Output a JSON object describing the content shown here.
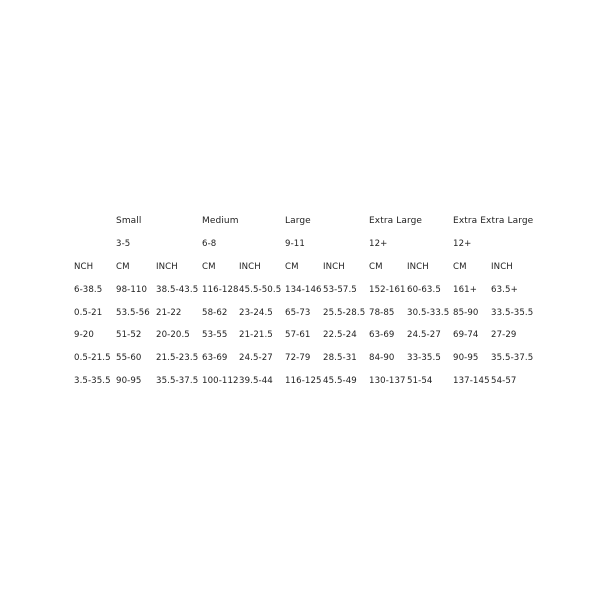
{
  "size_groups": [
    {
      "name": "Small",
      "age": "3-5"
    },
    {
      "name": "Medium",
      "age": "6-8"
    },
    {
      "name": "Large",
      "age": "9-11"
    },
    {
      "name": "Extra Large",
      "age": "12+"
    },
    {
      "name": "Extra Extra Large",
      "age": "12+"
    }
  ],
  "header_row": [
    "NCH",
    "CM",
    "INCH",
    "CM",
    "INCH",
    "CM",
    "INCH",
    "CM",
    "INCH",
    "CM",
    "INCH"
  ],
  "rows": [
    [
      "6-38.5",
      "98-110",
      "38.5-43.5",
      "116-128",
      "45.5-50.5",
      "134-146",
      "53-57.5",
      "152-161",
      "60-63.5",
      "161+",
      "63.5+"
    ],
    [
      "0.5-21",
      "53.5-56",
      "21-22",
      "58-62",
      "23-24.5",
      "65-73",
      "25.5-28.5",
      "78-85",
      "30.5-33.5",
      "85-90",
      "33.5-35.5"
    ],
    [
      "9-20",
      "51-52",
      "20-20.5",
      "53-55",
      "21-21.5",
      "57-61",
      "22.5-24",
      "63-69",
      "24.5-27",
      "69-74",
      "27-29"
    ],
    [
      "0.5-21.5",
      "55-60",
      "21.5-23.5",
      "63-69",
      "24.5-27",
      "72-79",
      "28.5-31",
      "84-90",
      "33-35.5",
      "90-95",
      "35.5-37.5"
    ],
    [
      "3.5-35.5",
      "90-95",
      "35.5-37.5",
      "100-112",
      "39.5-44",
      "116-125",
      "45.5-49",
      "130-137",
      "51-54",
      "137-145",
      "54-57"
    ]
  ]
}
